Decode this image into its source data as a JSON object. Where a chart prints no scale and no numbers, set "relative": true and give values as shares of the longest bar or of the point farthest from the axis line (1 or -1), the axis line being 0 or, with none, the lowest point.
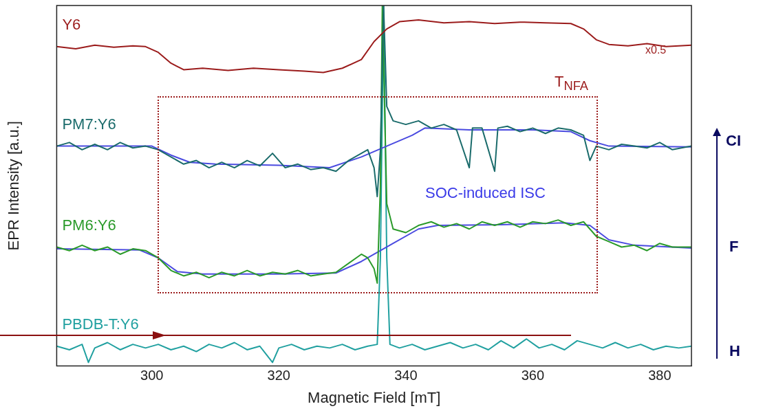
{
  "chart_data": {
    "type": "line",
    "xlabel": "Magnetic Field [mT]",
    "ylabel": "EPR Intensity [a.u.]",
    "relative": true,
    "xlim": [
      285,
      385
    ],
    "xticks": [
      300,
      320,
      340,
      360,
      380
    ],
    "grid": false,
    "legend": false,
    "marker": "none",
    "line_style": "solid",
    "annotations": [
      "x0.5",
      "T$_{NFA}$",
      "SOC-induced ISC",
      "CI",
      "F",
      "H"
    ],
    "series": [
      {
        "name": "Y6",
        "color": "#9b1b1b",
        "x": [
          285,
          288,
          291,
          294,
          297,
          299,
          301,
          303,
          305,
          308,
          312,
          316,
          320,
          324,
          327,
          330,
          333,
          335,
          337,
          339,
          342,
          346,
          350,
          354,
          358,
          362,
          366,
          368,
          370,
          372,
          375,
          378,
          381,
          385
        ],
        "values": [
          0.886,
          0.88,
          0.89,
          0.884,
          0.888,
          0.886,
          0.87,
          0.84,
          0.822,
          0.826,
          0.82,
          0.826,
          0.822,
          0.818,
          0.814,
          0.826,
          0.85,
          0.9,
          0.935,
          0.955,
          0.96,
          0.952,
          0.955,
          0.95,
          0.954,
          0.952,
          0.95,
          0.935,
          0.905,
          0.892,
          0.888,
          0.894,
          0.886,
          0.89
        ]
      },
      {
        "name": "PM7:Y6",
        "color": "#1a6b6b",
        "x": [
          285,
          287,
          289,
          291,
          293,
          295,
          297,
          299,
          301,
          303,
          305,
          307,
          309,
          311,
          313,
          315,
          317,
          319,
          321,
          323,
          325,
          327,
          329,
          331,
          333,
          334,
          335,
          335.5,
          336,
          336.5,
          337,
          338,
          340,
          342,
          344,
          346,
          348,
          350,
          350.5,
          352,
          354,
          354.5,
          356,
          358,
          360,
          362,
          364,
          366,
          368,
          369,
          370,
          372,
          374,
          376,
          378,
          380,
          382,
          385
        ],
        "values": [
          0.61,
          0.62,
          0.6,
          0.615,
          0.6,
          0.62,
          0.605,
          0.61,
          0.6,
          0.58,
          0.56,
          0.57,
          0.55,
          0.565,
          0.55,
          0.57,
          0.555,
          0.59,
          0.55,
          0.56,
          0.545,
          0.55,
          0.54,
          0.57,
          0.59,
          0.6,
          0.55,
          0.47,
          0.6,
          1.0,
          0.72,
          0.68,
          0.67,
          0.68,
          0.66,
          0.67,
          0.655,
          0.55,
          0.66,
          0.66,
          0.54,
          0.66,
          0.665,
          0.65,
          0.66,
          0.645,
          0.66,
          0.655,
          0.64,
          0.57,
          0.61,
          0.6,
          0.615,
          0.61,
          0.605,
          0.62,
          0.6,
          0.61
        ]
      },
      {
        "color": "#4a4ae0",
        "x": [
          285,
          300,
          303,
          306,
          310,
          320,
          328,
          333,
          337,
          341,
          343,
          350,
          360,
          366,
          369,
          372,
          385
        ],
        "values": [
          0.61,
          0.61,
          0.585,
          0.565,
          0.56,
          0.557,
          0.55,
          0.58,
          0.61,
          0.64,
          0.66,
          0.655,
          0.655,
          0.65,
          0.625,
          0.61,
          0.608
        ]
      },
      {
        "name": "PM6:Y6",
        "color": "#2a9a2a",
        "x": [
          285,
          287,
          289,
          291,
          293,
          295,
          297,
          299,
          301,
          303,
          305,
          307,
          309,
          311,
          313,
          315,
          317,
          319,
          321,
          323,
          325,
          327,
          329,
          331,
          333,
          334,
          335,
          335.5,
          336,
          336.3,
          337,
          338,
          340,
          342,
          344,
          346,
          348,
          350,
          352,
          354,
          356,
          358,
          360,
          362,
          364,
          366,
          368,
          370,
          372,
          374,
          376,
          378,
          380,
          382,
          385
        ],
        "values": [
          0.33,
          0.32,
          0.335,
          0.32,
          0.33,
          0.31,
          0.325,
          0.32,
          0.3,
          0.265,
          0.25,
          0.26,
          0.245,
          0.26,
          0.25,
          0.265,
          0.25,
          0.26,
          0.255,
          0.265,
          0.25,
          0.255,
          0.26,
          0.285,
          0.31,
          0.3,
          0.27,
          0.23,
          0.5,
          1.0,
          0.45,
          0.38,
          0.37,
          0.39,
          0.4,
          0.385,
          0.395,
          0.38,
          0.4,
          0.39,
          0.4,
          0.385,
          0.4,
          0.395,
          0.405,
          0.39,
          0.4,
          0.36,
          0.345,
          0.33,
          0.335,
          0.32,
          0.34,
          0.33,
          0.33
        ]
      },
      {
        "color": "#4a4ae0",
        "x": [
          285,
          298,
          301,
          304,
          308,
          320,
          329,
          333,
          338,
          342,
          345,
          355,
          365,
          369,
          372,
          376,
          385
        ],
        "values": [
          0.325,
          0.322,
          0.3,
          0.262,
          0.255,
          0.255,
          0.258,
          0.29,
          0.34,
          0.38,
          0.39,
          0.392,
          0.397,
          0.39,
          0.35,
          0.335,
          0.327
        ]
      },
      {
        "name": "PBDB-T:Y6",
        "color": "#20a0a0",
        "x": [
          285,
          287,
          289,
          290,
          291,
          293,
          295,
          297,
          299,
          301,
          303,
          305,
          307,
          309,
          311,
          313,
          315,
          317,
          319,
          320,
          322,
          324,
          326,
          328,
          330,
          332,
          334,
          335.5,
          336,
          336.5,
          337,
          337.5,
          339,
          341,
          343,
          345,
          347,
          349,
          351,
          353,
          355,
          357,
          359,
          361,
          363,
          365,
          367,
          369,
          371,
          373,
          375,
          377,
          379,
          381,
          383,
          385
        ],
        "values": [
          0.055,
          0.045,
          0.06,
          0.01,
          0.05,
          0.065,
          0.045,
          0.06,
          0.05,
          0.06,
          0.045,
          0.055,
          0.04,
          0.06,
          0.05,
          0.065,
          0.045,
          0.055,
          0.01,
          0.05,
          0.06,
          0.045,
          0.055,
          0.05,
          0.06,
          0.045,
          0.055,
          0.06,
          0.3,
          1.0,
          0.3,
          0.06,
          0.05,
          0.06,
          0.045,
          0.055,
          0.065,
          0.05,
          0.06,
          0.045,
          0.07,
          0.05,
          0.075,
          0.05,
          0.06,
          0.045,
          0.07,
          0.06,
          0.05,
          0.065,
          0.05,
          0.06,
          0.045,
          0.055,
          0.05,
          0.055
        ]
      }
    ]
  }
}
